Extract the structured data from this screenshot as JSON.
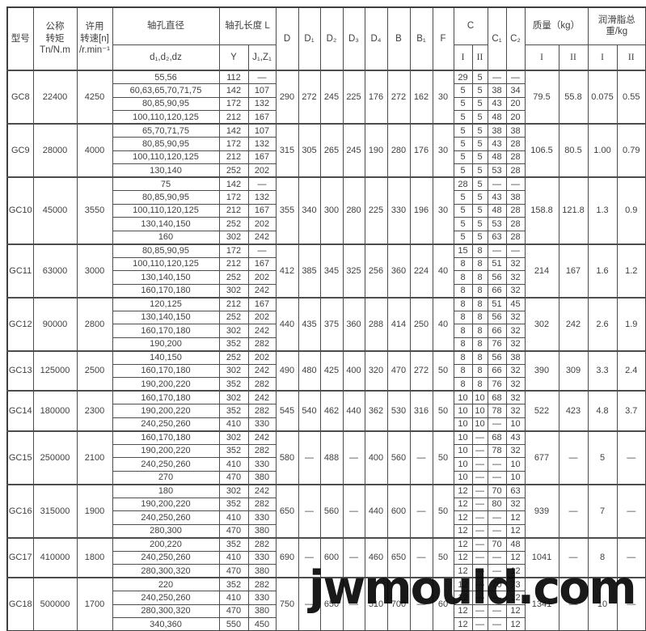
{
  "header": {
    "model": "型号",
    "torque": "公称\n转矩\nTn/N.m",
    "speed": "许用\n转速[n]\n/r.min⁻¹",
    "bore_dia": "轴孔直径",
    "bore_dia_sub": "d₁,d₂,dz",
    "bore_len": "轴孔长度 L",
    "y": "Y",
    "jz": "J₁,Z₁",
    "d": "D",
    "d1": "D₁",
    "d2": "D₂",
    "d3": "D₃",
    "d4": "D₄",
    "b": "B",
    "b1": "B₁",
    "f": "F",
    "c": "C",
    "c1": "C₁",
    "c2": "C₂",
    "mass": "质量（kg）",
    "grease": "润滑脂总重/kg",
    "i": "I",
    "ii": "II"
  },
  "watermark": {
    "text": "jwmould.com"
  },
  "groups": [
    {
      "model": "GC8",
      "torque": "22400",
      "speed": "4250",
      "d": "290",
      "d1": "272",
      "d2": "245",
      "d3": "225",
      "d4": "176",
      "b": "272",
      "b1": "162",
      "f": "30",
      "mass_i": "79.5",
      "mass_ii": "55.8",
      "grease_i": "0.075",
      "grease_ii": "0.55",
      "rows": [
        {
          "bore": "55,56",
          "y": "112",
          "jz": "—",
          "ci": "29",
          "cii": "5",
          "c1": "—",
          "c2": "—"
        },
        {
          "bore": "60,63,65,70,71,75",
          "y": "142",
          "jz": "107",
          "ci": "5",
          "cii": "5",
          "c1": "38",
          "c2": "34"
        },
        {
          "bore": "80,85,90,95",
          "y": "172",
          "jz": "132",
          "ci": "5",
          "cii": "5",
          "c1": "43",
          "c2": "20"
        },
        {
          "bore": "100,110,120,125",
          "y": "212",
          "jz": "167",
          "ci": "5",
          "cii": "5",
          "c1": "48",
          "c2": "20"
        }
      ]
    },
    {
      "model": "GC9",
      "torque": "28000",
      "speed": "4000",
      "d": "315",
      "d1": "305",
      "d2": "265",
      "d3": "245",
      "d4": "190",
      "b": "280",
      "b1": "176",
      "f": "30",
      "mass_i": "106.5",
      "mass_ii": "80.5",
      "grease_i": "1.00",
      "grease_ii": "0.79",
      "rows": [
        {
          "bore": "65,70,71,75",
          "y": "142",
          "jz": "107",
          "ci": "5",
          "cii": "5",
          "c1": "38",
          "c2": "38"
        },
        {
          "bore": "80,85,90,95",
          "y": "172",
          "jz": "132",
          "ci": "5",
          "cii": "5",
          "c1": "43",
          "c2": "28"
        },
        {
          "bore": "100,110,120,125",
          "y": "212",
          "jz": "167",
          "ci": "5",
          "cii": "5",
          "c1": "48",
          "c2": "28"
        },
        {
          "bore": "130,140",
          "y": "252",
          "jz": "202",
          "ci": "5",
          "cii": "5",
          "c1": "53",
          "c2": "28"
        }
      ]
    },
    {
      "model": "GC10",
      "torque": "45000",
      "speed": "3550",
      "d": "355",
      "d1": "340",
      "d2": "300",
      "d3": "280",
      "d4": "225",
      "b": "330",
      "b1": "196",
      "f": "30",
      "mass_i": "158.8",
      "mass_ii": "121.8",
      "grease_i": "1.3",
      "grease_ii": "0.9",
      "rows": [
        {
          "bore": "75",
          "y": "142",
          "jz": "—",
          "ci": "28",
          "cii": "5",
          "c1": "—",
          "c2": "—"
        },
        {
          "bore": "80,85,90,95",
          "y": "172",
          "jz": "132",
          "ci": "5",
          "cii": "5",
          "c1": "43",
          "c2": "38"
        },
        {
          "bore": "100,110,120,125",
          "y": "212",
          "jz": "167",
          "ci": "5",
          "cii": "5",
          "c1": "48",
          "c2": "28"
        },
        {
          "bore": "130,140,150",
          "y": "252",
          "jz": "202",
          "ci": "5",
          "cii": "5",
          "c1": "53",
          "c2": "28"
        },
        {
          "bore": "160",
          "y": "302",
          "jz": "242",
          "ci": "5",
          "cii": "5",
          "c1": "63",
          "c2": "28"
        }
      ]
    },
    {
      "model": "GC11",
      "torque": "63000",
      "speed": "3000",
      "d": "412",
      "d1": "385",
      "d2": "345",
      "d3": "325",
      "d4": "256",
      "b": "360",
      "b1": "224",
      "f": "40",
      "mass_i": "214",
      "mass_ii": "167",
      "grease_i": "1.6",
      "grease_ii": "1.2",
      "rows": [
        {
          "bore": "80,85,90,95",
          "y": "172",
          "jz": "—",
          "ci": "15",
          "cii": "8",
          "c1": "—",
          "c2": "—"
        },
        {
          "bore": "100,110,120,125",
          "y": "212",
          "jz": "167",
          "ci": "8",
          "cii": "8",
          "c1": "51",
          "c2": "32"
        },
        {
          "bore": "130,140,150",
          "y": "252",
          "jz": "202",
          "ci": "8",
          "cii": "8",
          "c1": "56",
          "c2": "32"
        },
        {
          "bore": "160,170,180",
          "y": "302",
          "jz": "242",
          "ci": "8",
          "cii": "8",
          "c1": "66",
          "c2": "32"
        }
      ]
    },
    {
      "model": "GC12",
      "torque": "90000",
      "speed": "2800",
      "d": "440",
      "d1": "435",
      "d2": "375",
      "d3": "360",
      "d4": "288",
      "b": "414",
      "b1": "250",
      "f": "40",
      "mass_i": "302",
      "mass_ii": "242",
      "grease_i": "2.6",
      "grease_ii": "1.9",
      "rows": [
        {
          "bore": "120,125",
          "y": "212",
          "jz": "167",
          "ci": "8",
          "cii": "8",
          "c1": "51",
          "c2": "45"
        },
        {
          "bore": "130,140,150",
          "y": "252",
          "jz": "202",
          "ci": "8",
          "cii": "8",
          "c1": "56",
          "c2": "32"
        },
        {
          "bore": "160,170,180",
          "y": "302",
          "jz": "242",
          "ci": "8",
          "cii": "8",
          "c1": "66",
          "c2": "32"
        },
        {
          "bore": "190,200",
          "y": "352",
          "jz": "282",
          "ci": "8",
          "cii": "8",
          "c1": "76",
          "c2": "32"
        }
      ]
    },
    {
      "model": "GC13",
      "torque": "125000",
      "speed": "2500",
      "d": "490",
      "d1": "480",
      "d2": "425",
      "d3": "400",
      "d4": "320",
      "b": "470",
      "b1": "272",
      "f": "50",
      "mass_i": "390",
      "mass_ii": "309",
      "grease_i": "3.3",
      "grease_ii": "2.4",
      "rows": [
        {
          "bore": "140,150",
          "y": "252",
          "jz": "202",
          "ci": "8",
          "cii": "8",
          "c1": "56",
          "c2": "38"
        },
        {
          "bore": "160,170,180",
          "y": "302",
          "jz": "242",
          "ci": "8",
          "cii": "8",
          "c1": "66",
          "c2": "32"
        },
        {
          "bore": "190,200,220",
          "y": "352",
          "jz": "282",
          "ci": "8",
          "cii": "8",
          "c1": "76",
          "c2": "32"
        }
      ]
    },
    {
      "model": "GC14",
      "torque": "180000",
      "speed": "2300",
      "d": "545",
      "d1": "540",
      "d2": "462",
      "d3": "440",
      "d4": "362",
      "b": "530",
      "b1": "316",
      "f": "50",
      "mass_i": "522",
      "mass_ii": "423",
      "grease_i": "4.8",
      "grease_ii": "3.7",
      "rows": [
        {
          "bore": "160,170,180",
          "y": "302",
          "jz": "242",
          "ci": "10",
          "cii": "10",
          "c1": "68",
          "c2": "32"
        },
        {
          "bore": "190,200,220",
          "y": "352",
          "jz": "282",
          "ci": "10",
          "cii": "10",
          "c1": "78",
          "c2": "32"
        },
        {
          "bore": "240,250,260",
          "y": "410",
          "jz": "330",
          "ci": "10",
          "cii": "10",
          "c1": "—",
          "c2": "10"
        }
      ]
    },
    {
      "model": "GC15",
      "torque": "250000",
      "speed": "2100",
      "d": "580",
      "d1": "—",
      "d2": "488",
      "d3": "—",
      "d4": "400",
      "b": "560",
      "b1": "—",
      "f": "50",
      "mass_i": "677",
      "mass_ii": "—",
      "grease_i": "5",
      "grease_ii": "—",
      "rows": [
        {
          "bore": "160,170,180",
          "y": "302",
          "jz": "242",
          "ci": "10",
          "cii": "—",
          "c1": "68",
          "c2": "43"
        },
        {
          "bore": "190,200,220",
          "y": "352",
          "jz": "282",
          "ci": "10",
          "cii": "—",
          "c1": "78",
          "c2": "32"
        },
        {
          "bore": "240,250,260",
          "y": "410",
          "jz": "330",
          "ci": "10",
          "cii": "—",
          "c1": "—",
          "c2": "10"
        },
        {
          "bore": "270",
          "y": "470",
          "jz": "380",
          "ci": "10",
          "cii": "—",
          "c1": "—",
          "c2": "10"
        }
      ]
    },
    {
      "model": "GC16",
      "torque": "315000",
      "speed": "1900",
      "d": "650",
      "d1": "—",
      "d2": "560",
      "d3": "—",
      "d4": "440",
      "b": "600",
      "b1": "—",
      "f": "50",
      "mass_i": "939",
      "mass_ii": "—",
      "grease_i": "7",
      "grease_ii": "—",
      "rows": [
        {
          "bore": "180",
          "y": "302",
          "jz": "242",
          "ci": "12",
          "cii": "—",
          "c1": "70",
          "c2": "63"
        },
        {
          "bore": "190,200,220",
          "y": "352",
          "jz": "282",
          "ci": "12",
          "cii": "—",
          "c1": "80",
          "c2": "32"
        },
        {
          "bore": "240,250,260",
          "y": "410",
          "jz": "330",
          "ci": "12",
          "cii": "—",
          "c1": "—",
          "c2": "12"
        },
        {
          "bore": "280,300",
          "y": "470",
          "jz": "380",
          "ci": "12",
          "cii": "—",
          "c1": "—",
          "c2": "12"
        }
      ]
    },
    {
      "model": "GC17",
      "torque": "410000",
      "speed": "1800",
      "d": "690",
      "d1": "—",
      "d2": "600",
      "d3": "—",
      "d4": "460",
      "b": "650",
      "b1": "—",
      "f": "50",
      "mass_i": "1041",
      "mass_ii": "—",
      "grease_i": "8",
      "grease_ii": "—",
      "rows": [
        {
          "bore": "200,220",
          "y": "352",
          "jz": "282",
          "ci": "12",
          "cii": "—",
          "c1": "70",
          "c2": "48"
        },
        {
          "bore": "240,250,260",
          "y": "410",
          "jz": "330",
          "ci": "12",
          "cii": "—",
          "c1": "—",
          "c2": "12"
        },
        {
          "bore": "280,300,320",
          "y": "470",
          "jz": "380",
          "ci": "12",
          "cii": "—",
          "c1": "—",
          "c2": "12"
        }
      ]
    },
    {
      "model": "GC18",
      "torque": "500000",
      "speed": "1700",
      "d": "750",
      "d1": "—",
      "d2": "650",
      "d3": "—",
      "d4": "510",
      "b": "700",
      "b1": "—",
      "f": "60",
      "mass_i": "1341",
      "mass_ii": "—",
      "grease_i": "10",
      "grease_ii": "—",
      "rows": [
        {
          "bore": "220",
          "y": "352",
          "jz": "282",
          "ci": "12",
          "cii": "—",
          "c1": "70",
          "c2": "73"
        },
        {
          "bore": "240,250,260",
          "y": "410",
          "jz": "330",
          "ci": "12",
          "cii": "—",
          "c1": "—",
          "c2": "12"
        },
        {
          "bore": "280,300,320",
          "y": "470",
          "jz": "380",
          "ci": "12",
          "cii": "—",
          "c1": "—",
          "c2": "12"
        },
        {
          "bore": "340,360",
          "y": "550",
          "jz": "450",
          "ci": "12",
          "cii": "—",
          "c1": "—",
          "c2": "12"
        }
      ]
    }
  ]
}
